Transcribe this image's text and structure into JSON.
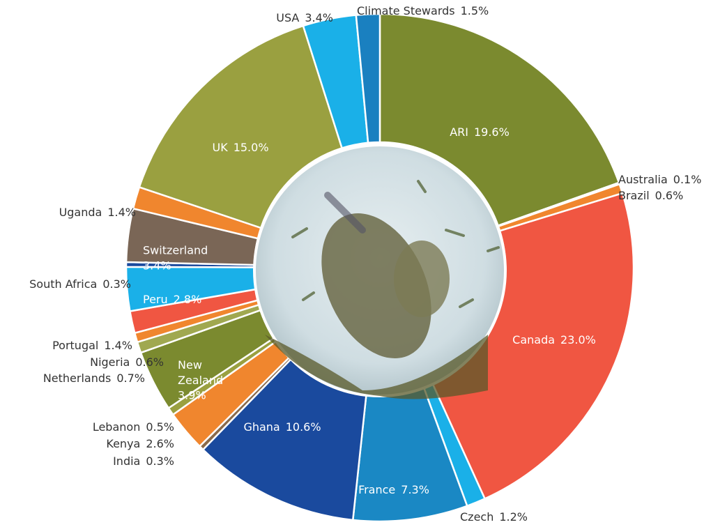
{
  "chart_data": {
    "type": "donut",
    "categories": [
      "ARI",
      "Australia",
      "Brazil",
      "Canada",
      "Czech",
      "France",
      "Ghana",
      "India",
      "Kenya",
      "Lebanon",
      "New Zealand",
      "Netherlands",
      "Nigeria",
      "Portugal",
      "Peru",
      "South Africa",
      "Switzerland",
      "Uganda",
      "UK",
      "USA",
      "Climate Stewards"
    ],
    "values": [
      19.6,
      0.1,
      0.6,
      23.0,
      1.2,
      7.3,
      10.6,
      0.3,
      2.6,
      0.5,
      3.9,
      0.7,
      0.6,
      1.4,
      2.8,
      0.3,
      3.4,
      1.4,
      15.0,
      3.4,
      1.5
    ],
    "value_labels": [
      "19.6%",
      "0.1%",
      "0.6%",
      "23.0%",
      "1.2%",
      "7.3%",
      "10.6%",
      "0.3%",
      "2.6%",
      "0.5%",
      "3.9%",
      "0.7%",
      "0.6%",
      "1.4%",
      "2.8%",
      "0.3%",
      "3.4%",
      "1.4%",
      "15.0%",
      "3.4%",
      "1.5%"
    ],
    "colors": [
      "#7b8a2f",
      "#f0862e",
      "#f0862e",
      "#f05642",
      "#1ab0e8",
      "#1a88c4",
      "#1a4a9e",
      "#8a6a4a",
      "#f0862e",
      "#9aa040",
      "#7b8a2f",
      "#a0a850",
      "#f0862e",
      "#f05642",
      "#1ab0e8",
      "#1a4a9e",
      "#7a6656",
      "#f0862e",
      "#9aa040",
      "#1ab0e8",
      "#1a80c0"
    ]
  }
}
